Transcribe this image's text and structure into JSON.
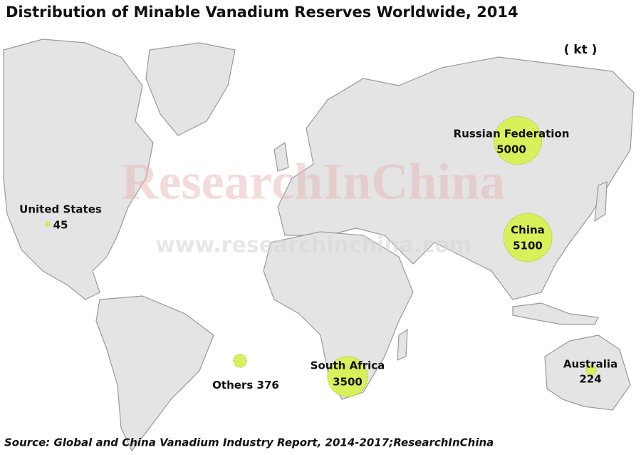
{
  "title": "Distribution of Minable Vanadium Reserves Worldwide, 2014",
  "unit": "( kt )",
  "watermark": "ResearchInChina",
  "watermark_url": "www.researchinchina.com",
  "source": "Source: Global and China Vanadium Industry Report, 2014-2017;ResearchInChina",
  "regions": [
    {
      "name": "United States",
      "value": 45
    },
    {
      "name": "Russian Federation",
      "value": 5000
    },
    {
      "name": "China",
      "value": 5100
    },
    {
      "name": "South Africa",
      "value": 3500
    },
    {
      "name": "Others",
      "value": 376
    },
    {
      "name": "Australia",
      "value": 224
    }
  ]
}
